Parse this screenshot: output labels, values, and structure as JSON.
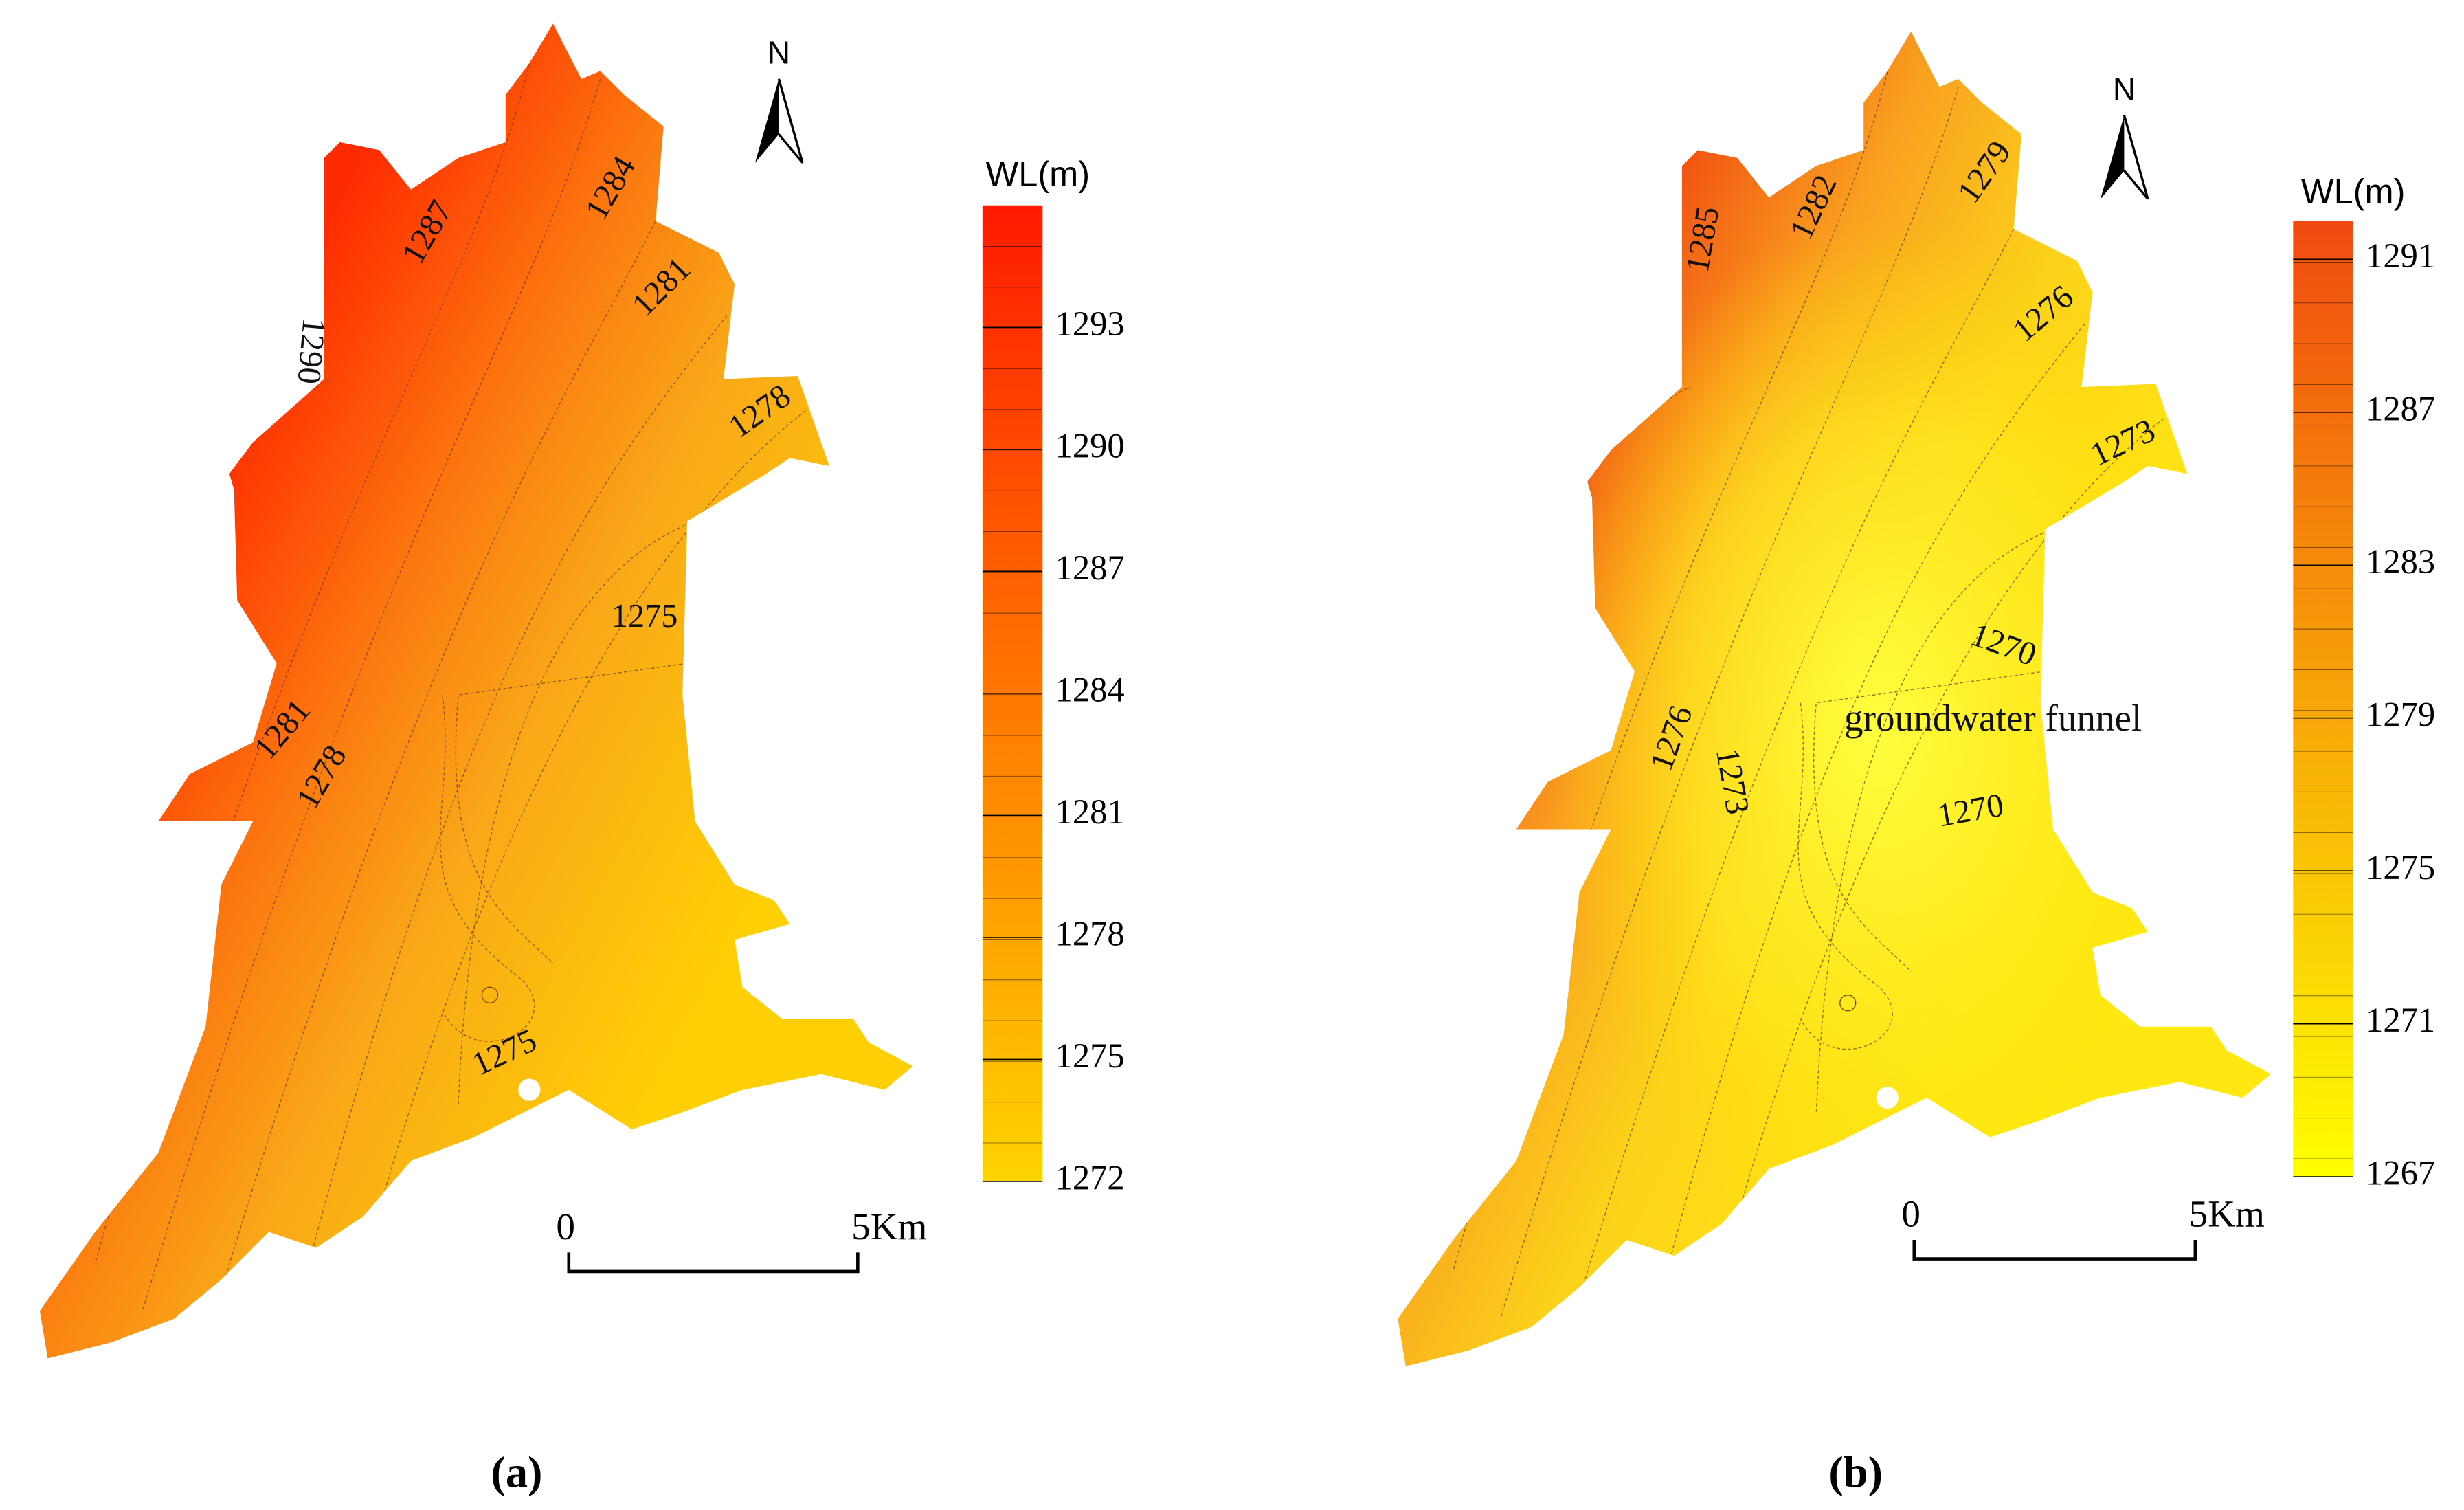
{
  "panels": [
    {
      "label": "(a)",
      "north": "N",
      "scale": [
        "0",
        "5Km"
      ],
      "legend": {
        "title": "WL(m)",
        "ticks": [
          1293,
          1290,
          1287,
          1284,
          1281,
          1278,
          1275,
          1272
        ],
        "range": [
          1272,
          1296
        ],
        "colors": [
          "#ffd400",
          "#ff1a00"
        ]
      },
      "contour_labels": [
        1284,
        1287,
        1290,
        1281,
        1278,
        1275,
        1281,
        1278,
        1275
      ]
    },
    {
      "label": "(b)",
      "north": "N",
      "scale": [
        "0",
        "5Km"
      ],
      "legend": {
        "title": "WL(m)",
        "ticks": [
          1291,
          1287,
          1283,
          1279,
          1275,
          1271,
          1267
        ],
        "range": [
          1267,
          1292
        ],
        "colors": [
          "#ffff00",
          "#f04a10"
        ]
      },
      "contour_labels": [
        1285,
        1282,
        1279,
        1276,
        1273,
        1270,
        1270,
        1276,
        1273
      ],
      "annotation": "groundwater funnel"
    }
  ]
}
